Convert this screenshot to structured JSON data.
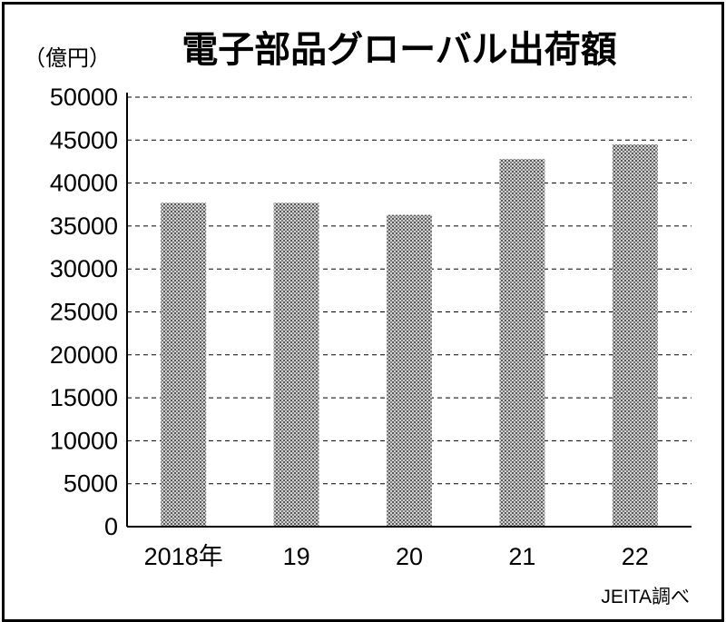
{
  "chart_data": {
    "type": "bar",
    "title": "電子部品グローバル出荷額",
    "ylabel": "（億円）",
    "xlabel": "",
    "categories": [
      "2018年",
      "19",
      "20",
      "21",
      "22"
    ],
    "values": [
      37700,
      37700,
      36300,
      42800,
      44500
    ],
    "ylim": [
      0,
      50000
    ],
    "yticks": [
      "0",
      "5000",
      "10000",
      "15000",
      "20000",
      "25000",
      "30000",
      "35000",
      "40000",
      "45000",
      "50000"
    ],
    "grid": "horizontal dashed",
    "bar_pattern": "gray-dotted",
    "source": "JEITA調べ"
  }
}
